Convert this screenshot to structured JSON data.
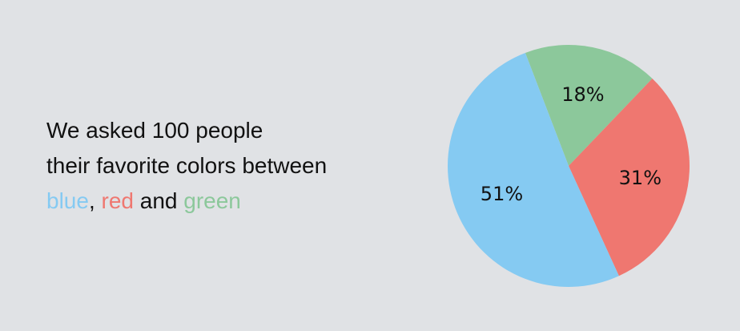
{
  "caption": {
    "line1": "We asked 100 people",
    "line2": "their favorite colors between",
    "blue_word": "blue",
    "comma": ",",
    "red_word": "red",
    "and_word": "and",
    "green_word": "green"
  },
  "colors": {
    "blue": "#85caf2",
    "red": "#ef7770",
    "green": "#8cc89b",
    "text": "#111111",
    "background": "#e0e2e5"
  },
  "chart_data": {
    "type": "pie",
    "categories": [
      "green",
      "red",
      "blue"
    ],
    "values": [
      18,
      31,
      51
    ],
    "labels": [
      "18%",
      "31%",
      "51%"
    ],
    "colors": [
      "#8cc89b",
      "#ef7770",
      "#85caf2"
    ],
    "unit": "%",
    "title": "",
    "legend": "none"
  }
}
